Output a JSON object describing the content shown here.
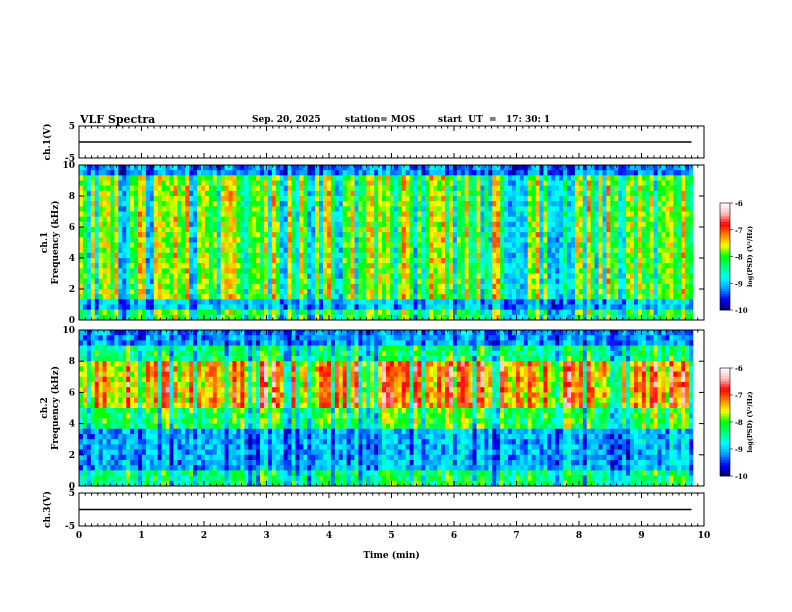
{
  "header": {
    "title": "VLF Spectra",
    "date": "Sep. 20, 2025",
    "station": "station= MOS",
    "start": "start  UT  =   17: 30: 1"
  },
  "chart_data": [
    {
      "type": "line",
      "ylabel": "ch.1(V)",
      "ylim": [
        -5,
        5
      ],
      "yticks": [
        5,
        -5
      ],
      "xlim": [
        0,
        10
      ],
      "series": [
        {
          "x": [
            0,
            9.8
          ],
          "y": [
            0,
            0
          ]
        }
      ],
      "color": "#000000"
    },
    {
      "type": "heatmap",
      "ylabel_top": "ch.1",
      "ylabel": "Frequency (kHz)",
      "ylim": [
        0,
        10
      ],
      "yticks": [
        0,
        2,
        4,
        6,
        8,
        10
      ],
      "xlim": [
        0,
        10
      ],
      "colorbar": {
        "label": "log(PSD) (V²/Hz)",
        "ticks": [
          -6,
          -7,
          -8,
          -9,
          -10
        ],
        "range": [
          -10,
          -6
        ]
      },
      "colormap": [
        "#000066",
        "#0000ff",
        "#00a0ff",
        "#00ffff",
        "#00ff80",
        "#00ff00",
        "#ffff00",
        "#ff8000",
        "#ff0000",
        "#ffc0c0",
        "#ffffff"
      ],
      "features": {
        "bright_band_khz": [
          1,
          9
        ],
        "dark_gaps_min": [
          0.7,
          1.15,
          1.8,
          3.3,
          3.7,
          4.0,
          6.9,
          7.6
        ]
      }
    },
    {
      "type": "heatmap",
      "ylabel_top": "ch.2",
      "ylabel": "Frequency (kHz)",
      "ylim": [
        0,
        10
      ],
      "yticks": [
        0,
        2,
        4,
        6,
        8,
        10
      ],
      "xlim": [
        0,
        10
      ],
      "colorbar": {
        "label": "log(PSD) (V²/Hz)",
        "ticks": [
          -6,
          -7,
          -8,
          -9,
          -10
        ],
        "range": [
          -10,
          -6
        ]
      },
      "colormap": [
        "#000066",
        "#0000ff",
        "#00a0ff",
        "#00ffff",
        "#00ff80",
        "#00ff00",
        "#ffff00",
        "#ff8000",
        "#ff0000",
        "#ffc0c0",
        "#ffffff"
      ],
      "features": {
        "peak_band_khz": [
          5,
          8
        ],
        "dark_band_khz": [
          1,
          3
        ]
      }
    },
    {
      "type": "line",
      "ylabel": "ch.3(V)",
      "ylim": [
        -5,
        5
      ],
      "yticks": [
        5,
        -5
      ],
      "xlim": [
        0,
        10
      ],
      "xlabel": "Time (min)",
      "xticks": [
        0,
        1,
        2,
        3,
        4,
        5,
        6,
        7,
        8,
        9,
        10
      ],
      "series": [
        {
          "x": [
            0,
            9.8
          ],
          "y": [
            0,
            0
          ]
        }
      ],
      "color": "#000000"
    }
  ]
}
